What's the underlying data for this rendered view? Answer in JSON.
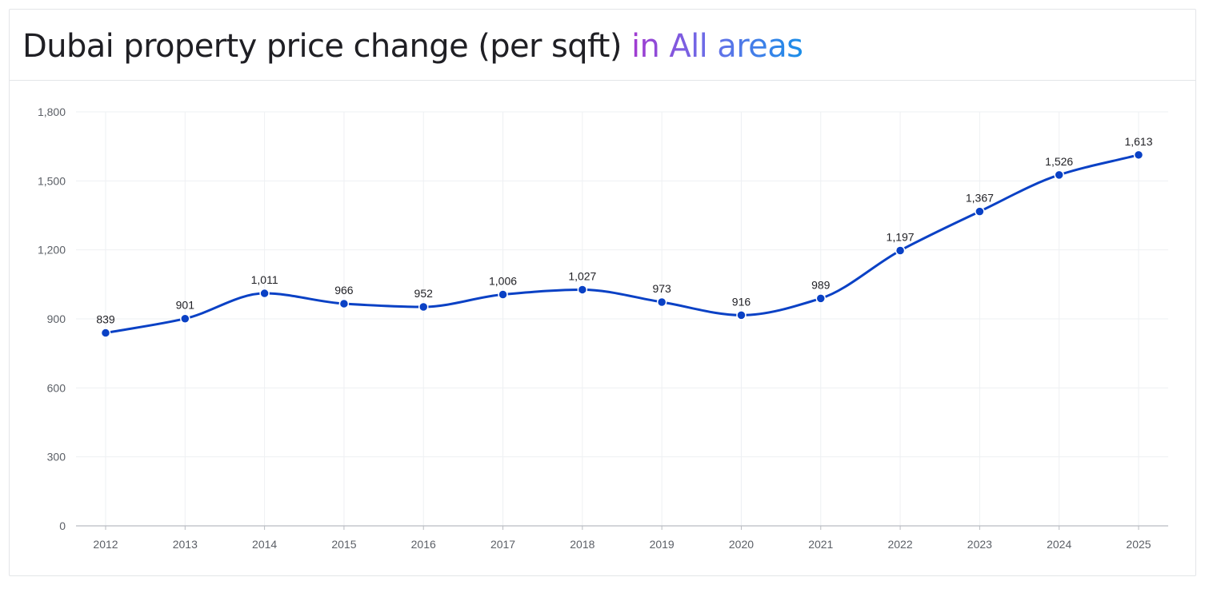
{
  "header": {
    "title_prefix": "Dubai property price change (per sqft)",
    "title_highlight": "in All areas"
  },
  "colors": {
    "line": "#0a41c5",
    "highlight_gradient": [
      "#a23ad0",
      "#6a6ee8",
      "#1a8ee8"
    ],
    "grid": "#eef0f3",
    "axis": "#b9bcc2"
  },
  "chart_data": {
    "type": "line",
    "title": "Dubai property price change (per sqft) in All areas",
    "x": [
      "2012",
      "2013",
      "2014",
      "2015",
      "2016",
      "2017",
      "2018",
      "2019",
      "2020",
      "2021",
      "2022",
      "2023",
      "2024",
      "2025"
    ],
    "series": [
      {
        "values": [
          839,
          901,
          1011,
          966,
          952,
          1006,
          1027,
          973,
          916,
          989,
          1197,
          1367,
          1526,
          1613
        ]
      }
    ],
    "data_labels": [
      "839",
      "901",
      "1,011",
      "966",
      "952",
      "1,006",
      "1,027",
      "973",
      "916",
      "989",
      "1,197",
      "1,367",
      "1,526",
      "1,613"
    ],
    "y_ticks": [
      0,
      300,
      600,
      900,
      1200,
      1500,
      1800
    ],
    "y_tick_labels": [
      "0",
      "300",
      "600",
      "900",
      "1,200",
      "1,500",
      "1,800"
    ],
    "ylim": [
      0,
      1800
    ],
    "xlabel": "",
    "ylabel": "",
    "grid": true,
    "smooth": true
  }
}
